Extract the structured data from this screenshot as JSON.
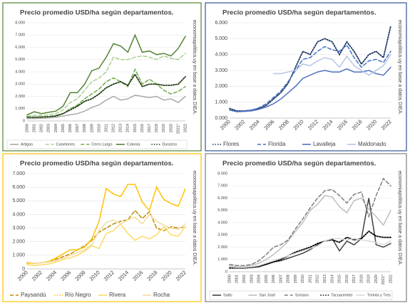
{
  "chart_data": [
    {
      "type": "line",
      "title": "Precio promedio USD/ha según departamentos.",
      "source": "economiapolitica.uy en base a datos DIEA.",
      "border_color": "#548235",
      "grid": true,
      "categories": [
        "2000",
        "2001",
        "2002",
        "2003",
        "2004",
        "2005",
        "2006",
        "2007",
        "2008",
        "2009",
        "2010",
        "2011",
        "2012",
        "2013",
        "2014",
        "2015",
        "2016",
        "2017",
        "2018",
        "2019",
        "2020",
        "2021*",
        "2022"
      ],
      "ylim": [
        0,
        8000
      ],
      "yticks": [
        0,
        {
          "value": 1000,
          "label": "1.000"
        },
        {
          "value": 2000,
          "label": "2.000"
        },
        {
          "value": 3000,
          "label": "3.000"
        },
        {
          "value": 4000,
          "label": "4.000"
        },
        {
          "value": 5000,
          "label": "5.000"
        },
        {
          "value": 6000,
          "label": "6.000"
        },
        {
          "value": 7000,
          "label": "7.000"
        },
        {
          "value": 8000,
          "label": "8.000"
        }
      ],
      "series": [
        {
          "name": "Artigas",
          "color": "#a9a9a9",
          "style": "solid",
          "values": [
            200,
            200,
            220,
            250,
            300,
            400,
            500,
            600,
            800,
            1100,
            1300,
            1700,
            2000,
            1700,
            1800,
            2100,
            2000,
            1900,
            2000,
            1700,
            1800,
            1500,
            2000
          ]
        },
        {
          "name": "Canelones",
          "color": "#a8d08d",
          "style": "dashed",
          "values": [
            400,
            450,
            450,
            500,
            600,
            900,
            1500,
            1800,
            2500,
            3200,
            3500,
            4000,
            5200,
            5000,
            5000,
            5200,
            5300,
            5200,
            5000,
            5300,
            5100,
            5000,
            5500
          ]
        },
        {
          "name": "Cerro Largo",
          "color": "#70ad47",
          "style": "dashed",
          "values": [
            300,
            300,
            300,
            350,
            450,
            600,
            1000,
            1300,
            1800,
            2200,
            2600,
            3200,
            3500,
            3200,
            2800,
            4200,
            3000,
            3400,
            3000,
            2500,
            2200,
            2400,
            2800
          ]
        },
        {
          "name": "Colonia",
          "color": "#548235",
          "style": "solid",
          "values": [
            500,
            750,
            600,
            700,
            800,
            1200,
            2300,
            2300,
            3000,
            4100,
            4300,
            5200,
            6300,
            6100,
            5600,
            7000,
            5600,
            5700,
            5400,
            5500,
            5300,
            5900,
            6900
          ]
        },
        {
          "name": "Durazno",
          "color": "#1f3a14",
          "style": "dotted",
          "values": [
            300,
            300,
            320,
            350,
            400,
            600,
            900,
            1200,
            1600,
            1800,
            2200,
            2700,
            3000,
            3200,
            2900,
            3800,
            2800,
            3000,
            3000,
            2900,
            2900,
            3000,
            3600
          ]
        }
      ]
    },
    {
      "type": "line",
      "title": "Precio promedio USD/ha según departamentos.",
      "source": "economiapolitica.uy en base a datos DIEA.",
      "border_color": "#2f5597",
      "grid": true,
      "categories": [
        "2000",
        null,
        "2002",
        null,
        "2004",
        null,
        "2006",
        null,
        "2008",
        null,
        "2010",
        null,
        "2012",
        null,
        "2014",
        null,
        "2016",
        null,
        "2018",
        null,
        "2020",
        null,
        "2022"
      ],
      "ylim": [
        0,
        6000
      ],
      "yticks": [
        {
          "value": 0,
          "label": "0.000"
        },
        {
          "value": 1000,
          "label": "1.000"
        },
        {
          "value": 2000,
          "label": "2.000"
        },
        {
          "value": 3000,
          "label": "3.000"
        },
        {
          "value": 4000,
          "label": "4.000"
        },
        {
          "value": 5000,
          "label": "5.000"
        },
        {
          "value": 6000,
          "label": "6.000"
        }
      ],
      "series": [
        {
          "name": "Flores",
          "color": "#1f3864",
          "style": "dotted",
          "values": [
            600,
            450,
            450,
            500,
            600,
            800,
            1200,
            1600,
            2200,
            3200,
            4200,
            4000,
            4800,
            5000,
            4800,
            4000,
            4800,
            4200,
            3400,
            4000,
            4200,
            3800,
            5800
          ]
        },
        {
          "name": "Florida",
          "color": "#4472c4",
          "style": "dashed",
          "values": [
            500,
            420,
            430,
            500,
            650,
            900,
            1300,
            1700,
            2300,
            3000,
            3700,
            3800,
            4200,
            4500,
            4300,
            4200,
            4600,
            3800,
            3200,
            3600,
            3700,
            3500,
            4200
          ]
        },
        {
          "name": "Lavalleja",
          "color": "#4f71be",
          "style": "solid",
          "values": [
            500,
            400,
            420,
            450,
            550,
            700,
            900,
            1200,
            1600,
            2000,
            2500,
            2700,
            2900,
            3000,
            2900,
            2900,
            3100,
            2900,
            2900,
            3000,
            2800,
            2700,
            3200
          ]
        },
        {
          "name": "Maldonado",
          "color": "#b4c6e7",
          "style": "solid",
          "values": [
            null,
            null,
            null,
            null,
            null,
            null,
            2800,
            2800,
            2900,
            3000,
            3400,
            3300,
            3600,
            3800,
            3700,
            3200,
            3900,
            3300,
            3000,
            2700,
            3000,
            3300,
            4000
          ]
        }
      ]
    },
    {
      "type": "line",
      "title": "Precio promedio USD/ha según departamentos.",
      "source": "economiapolitica.uy en base a datos DIEA.",
      "border_color": "#ffc000",
      "grid": true,
      "categories": [
        "2000",
        null,
        "2002",
        null,
        "2004",
        null,
        "2006",
        null,
        "2008",
        null,
        "2010",
        null,
        "2012",
        null,
        "2014",
        null,
        "2016",
        null,
        "2018",
        null,
        "2020",
        null,
        "2022"
      ],
      "ylim": [
        0,
        7000
      ],
      "yticks": [
        0,
        {
          "value": 1000,
          "label": "1.000"
        },
        {
          "value": 2000,
          "label": "2.000"
        },
        {
          "value": 3000,
          "label": "3.000"
        },
        {
          "value": 4000,
          "label": "4.000"
        },
        {
          "value": 5000,
          "label": "5.000"
        },
        {
          "value": 6000,
          "label": "6.000"
        },
        {
          "value": 7000,
          "label": "7.000"
        }
      ],
      "series": [
        {
          "name": "Paysandú",
          "color": "#bf8f00",
          "style": "dashed",
          "values": [
            500,
            400,
            450,
            500,
            700,
            900,
            1100,
            1400,
            1700,
            2100,
            2700,
            3000,
            3300,
            3500,
            3600,
            4300,
            3700,
            4200,
            3000,
            2800,
            3100,
            3000,
            3100
          ]
        },
        {
          "name": "Río Negro",
          "color": "#ffc000",
          "style": "dotted",
          "values": [
            400,
            400,
            450,
            550,
            800,
            1100,
            1400,
            1400,
            1600,
            2200,
            3500,
            5900,
            5500,
            5300,
            6200,
            6200,
            4900,
            4300,
            6000,
            5100,
            4800,
            4600,
            5900
          ]
        },
        {
          "name": "Rivera",
          "color": "#ffd966",
          "style": "solid",
          "values": [
            300,
            250,
            300,
            350,
            500,
            700,
            800,
            1000,
            1300,
            1700,
            1500,
            2600,
            2800,
            3300,
            2600,
            2100,
            2400,
            2200,
            2500,
            3100,
            2500,
            2400,
            3100
          ]
        },
        {
          "name": "Rocha",
          "color": "#f4dca0",
          "style": "solid",
          "values": [
            500,
            400,
            450,
            500,
            600,
            800,
            1000,
            1200,
            1400,
            1800,
            2800,
            3400,
            3600,
            3300,
            3600,
            3800,
            3300,
            4000,
            3500,
            3200,
            3000,
            2900,
            3300
          ]
        }
      ]
    },
    {
      "type": "line",
      "title": "Precio promedio USD/ha según departamentos.",
      "source": "economiapolitica.uy en base a datos DIEA.",
      "border_color": "#7f7f7f",
      "grid": true,
      "categories": [
        "2000",
        "2001",
        "2002",
        "2003",
        "2004",
        "2005",
        "2006",
        "2007",
        "2008",
        "2009",
        "2010",
        "2011",
        "2012",
        "2013",
        "2014",
        "2015",
        "2016",
        "2017",
        "2018",
        "2019",
        "2020",
        "2021*",
        "2022"
      ],
      "ylim": [
        0,
        8000
      ],
      "yticks": [
        0,
        {
          "value": 1000,
          "label": "1.000"
        },
        {
          "value": 2000,
          "label": "2.000"
        },
        {
          "value": 3000,
          "label": "3.000"
        },
        {
          "value": 4000,
          "label": "4.000"
        },
        {
          "value": 5000,
          "label": "5.000"
        },
        {
          "value": 6000,
          "label": "6.000"
        },
        {
          "value": 7000,
          "label": "7.000"
        },
        {
          "value": 8000,
          "label": "8.000"
        }
      ],
      "series": [
        {
          "name": "Salto",
          "color": "#404040",
          "style": "solid",
          "values": [
            400,
            300,
            300,
            350,
            400,
            600,
            800,
            900,
            1100,
            1300,
            1500,
            1800,
            2200,
            2500,
            2700,
            1700,
            2500,
            2200,
            2700,
            6000,
            2200,
            2000,
            2300
          ]
        },
        {
          "name": "San José",
          "color": "#bfbfbf",
          "style": "solid",
          "values": [
            500,
            400,
            400,
            500,
            700,
            1000,
            1400,
            1900,
            2500,
            3300,
            4000,
            5000,
            5500,
            6200,
            6100,
            5300,
            4800,
            5800,
            6000,
            5100,
            4500,
            3800,
            5000
          ]
        },
        {
          "name": "Soriano",
          "color": "#7f7f7f",
          "style": "dashed",
          "values": [
            600,
            500,
            500,
            600,
            900,
            1400,
            2000,
            2200,
            2600,
            3500,
            4300,
            5200,
            6000,
            6600,
            6700,
            6200,
            5600,
            6300,
            6500,
            4500,
            6200,
            7600,
            7000
          ]
        },
        {
          "name": "Tacuarembó",
          "color": "#000000",
          "style": "dotted",
          "values": [
            300,
            300,
            300,
            350,
            450,
            600,
            800,
            1000,
            1300,
            1600,
            1800,
            2000,
            2300,
            2500,
            2600,
            2400,
            2800,
            2600,
            2700,
            3300,
            2900,
            2800,
            2800
          ]
        },
        {
          "name": "Treinta y Tres",
          "color": "#d9d9d9",
          "style": "solid",
          "values": [
            400,
            350,
            350,
            400,
            500,
            700,
            900,
            1100,
            1300,
            1500,
            1700,
            1900,
            2100,
            2500,
            2700,
            2700,
            2600,
            2700,
            2600,
            2500,
            2400,
            2200,
            2500
          ]
        }
      ]
    }
  ]
}
